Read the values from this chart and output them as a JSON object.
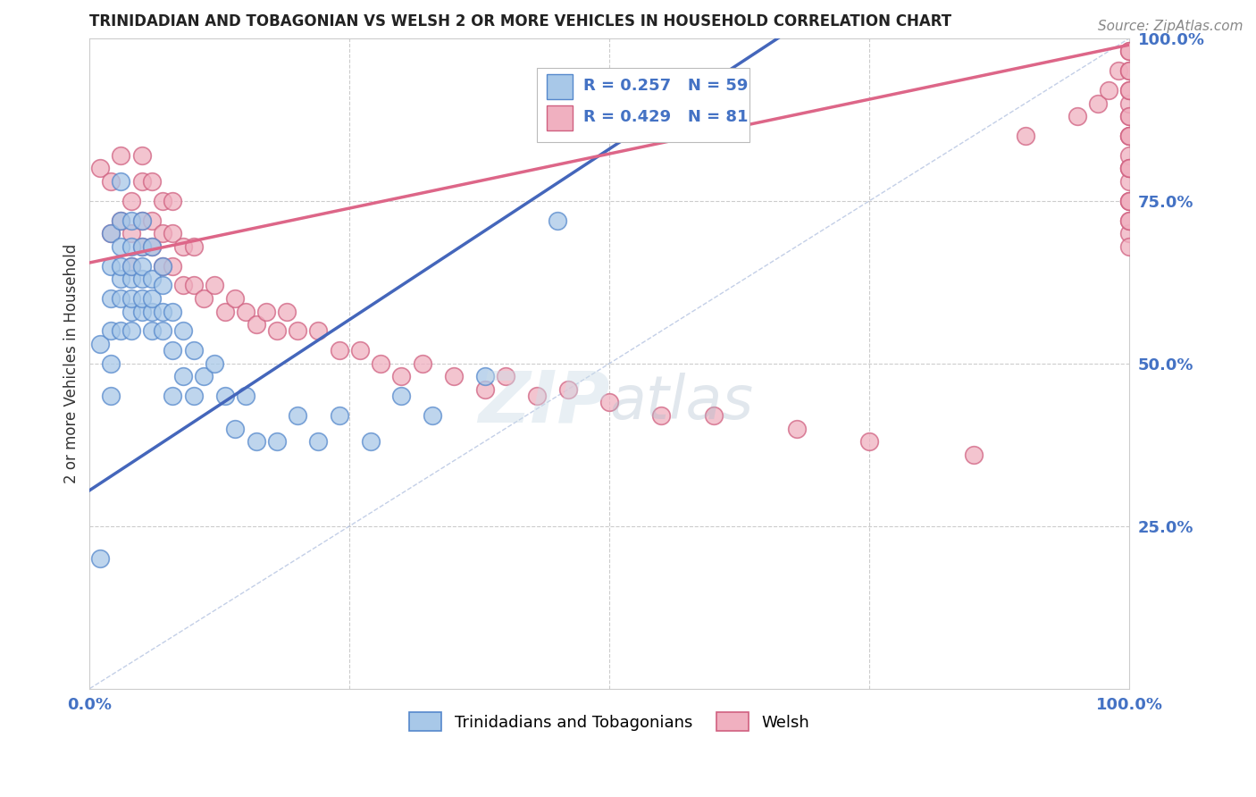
{
  "title": "TRINIDADIAN AND TOBAGONIAN VS WELSH 2 OR MORE VEHICLES IN HOUSEHOLD CORRELATION CHART",
  "source": "Source: ZipAtlas.com",
  "ylabel": "2 or more Vehicles in Household",
  "xlim": [
    0,
    1
  ],
  "ylim": [
    0,
    1
  ],
  "xtick_positions": [
    0,
    0.25,
    0.5,
    0.75,
    1.0
  ],
  "xticklabels": [
    "0.0%",
    "",
    "",
    "",
    "100.0%"
  ],
  "ytick_positions": [
    0.25,
    0.5,
    0.75,
    1.0
  ],
  "yticklabels": [
    "25.0%",
    "50.0%",
    "75.0%",
    "100.0%"
  ],
  "legend_text1": "R = 0.257   N = 59",
  "legend_text2": "R = 0.429   N = 81",
  "blue_fill": "#a8c8e8",
  "blue_edge": "#5588cc",
  "pink_fill": "#f0b0c0",
  "pink_edge": "#d06080",
  "blue_line": "#4466bb",
  "pink_line": "#dd6688",
  "diag_color": "#aabbdd",
  "label1": "Trinidadians and Tobagonians",
  "label2": "Welsh",
  "grid_color": "#cccccc",
  "bg_color": "#ffffff",
  "tick_color": "#4472c4",
  "title_color": "#222222",
  "watermark_color": "#ccdded",
  "blue_x": [
    0.01,
    0.01,
    0.02,
    0.02,
    0.02,
    0.02,
    0.02,
    0.02,
    0.03,
    0.03,
    0.03,
    0.03,
    0.03,
    0.03,
    0.03,
    0.04,
    0.04,
    0.04,
    0.04,
    0.04,
    0.04,
    0.04,
    0.05,
    0.05,
    0.05,
    0.05,
    0.05,
    0.05,
    0.06,
    0.06,
    0.06,
    0.06,
    0.06,
    0.07,
    0.07,
    0.07,
    0.07,
    0.08,
    0.08,
    0.08,
    0.09,
    0.09,
    0.1,
    0.1,
    0.11,
    0.12,
    0.13,
    0.14,
    0.15,
    0.16,
    0.18,
    0.2,
    0.22,
    0.24,
    0.27,
    0.3,
    0.33,
    0.38,
    0.45
  ],
  "blue_y": [
    0.2,
    0.53,
    0.45,
    0.5,
    0.55,
    0.6,
    0.65,
    0.7,
    0.55,
    0.6,
    0.63,
    0.65,
    0.68,
    0.72,
    0.78,
    0.55,
    0.58,
    0.6,
    0.63,
    0.65,
    0.68,
    0.72,
    0.58,
    0.6,
    0.63,
    0.65,
    0.68,
    0.72,
    0.55,
    0.58,
    0.6,
    0.63,
    0.68,
    0.55,
    0.58,
    0.62,
    0.65,
    0.45,
    0.52,
    0.58,
    0.48,
    0.55,
    0.45,
    0.52,
    0.48,
    0.5,
    0.45,
    0.4,
    0.45,
    0.38,
    0.38,
    0.42,
    0.38,
    0.42,
    0.38,
    0.45,
    0.42,
    0.48,
    0.72
  ],
  "pink_x": [
    0.01,
    0.02,
    0.02,
    0.03,
    0.03,
    0.04,
    0.04,
    0.04,
    0.05,
    0.05,
    0.05,
    0.05,
    0.06,
    0.06,
    0.06,
    0.07,
    0.07,
    0.07,
    0.08,
    0.08,
    0.08,
    0.09,
    0.09,
    0.1,
    0.1,
    0.11,
    0.12,
    0.13,
    0.14,
    0.15,
    0.16,
    0.17,
    0.18,
    0.19,
    0.2,
    0.22,
    0.24,
    0.26,
    0.28,
    0.3,
    0.32,
    0.35,
    0.38,
    0.4,
    0.43,
    0.46,
    0.5,
    0.55,
    0.6,
    0.68,
    0.75,
    0.85,
    0.9,
    0.95,
    0.97,
    0.98,
    0.99,
    1.0,
    1.0,
    1.0,
    1.0,
    1.0,
    1.0,
    1.0,
    1.0,
    1.0,
    1.0,
    1.0,
    1.0,
    1.0,
    1.0,
    1.0,
    1.0,
    1.0,
    1.0,
    1.0,
    1.0,
    1.0,
    1.0,
    1.0,
    1.0
  ],
  "pink_y": [
    0.8,
    0.7,
    0.78,
    0.72,
    0.82,
    0.65,
    0.7,
    0.75,
    0.68,
    0.72,
    0.78,
    0.82,
    0.68,
    0.72,
    0.78,
    0.65,
    0.7,
    0.75,
    0.65,
    0.7,
    0.75,
    0.62,
    0.68,
    0.62,
    0.68,
    0.6,
    0.62,
    0.58,
    0.6,
    0.58,
    0.56,
    0.58,
    0.55,
    0.58,
    0.55,
    0.55,
    0.52,
    0.52,
    0.5,
    0.48,
    0.5,
    0.48,
    0.46,
    0.48,
    0.45,
    0.46,
    0.44,
    0.42,
    0.42,
    0.4,
    0.38,
    0.36,
    0.85,
    0.88,
    0.9,
    0.92,
    0.95,
    0.7,
    0.72,
    0.75,
    0.78,
    0.8,
    0.82,
    0.85,
    0.88,
    0.9,
    0.92,
    0.95,
    0.98,
    0.68,
    0.72,
    0.75,
    0.8,
    0.85,
    0.88,
    0.92,
    0.95,
    0.98,
    0.75,
    0.8,
    0.85
  ]
}
